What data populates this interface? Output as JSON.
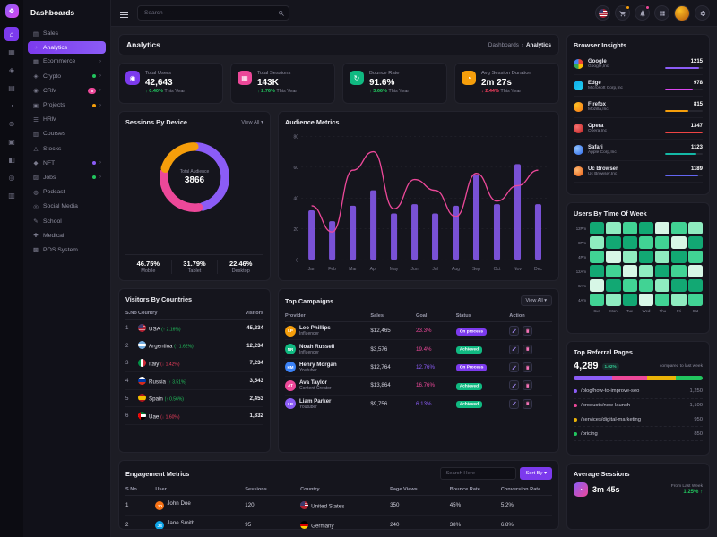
{
  "brand": {
    "name": "Dashboards"
  },
  "icons": {
    "caret": "▾",
    "crumb_sep": "›",
    "logo": "❖",
    "clock": "◔"
  },
  "rail": {
    "items": [
      {
        "glyph": "⌂",
        "name": "home-icon",
        "state": "active"
      },
      {
        "glyph": "▦",
        "name": "apps-icon"
      },
      {
        "glyph": "◈",
        "name": "components-icon"
      },
      {
        "glyph": "▤",
        "name": "pages-icon"
      },
      {
        "glyph": "◔",
        "name": "charts-icon"
      },
      {
        "glyph": "⊕",
        "name": "maps-icon"
      },
      {
        "glyph": "▣",
        "name": "calendar-icon"
      },
      {
        "glyph": "◧",
        "name": "layers-icon"
      },
      {
        "glyph": "◎",
        "name": "analytics-icon"
      },
      {
        "glyph": "▥",
        "name": "wallet-icon"
      }
    ]
  },
  "sidebar": {
    "items": [
      {
        "glyph": "▤",
        "label": "Sales",
        "dn": "sidebar-item-sales"
      },
      {
        "glyph": "◔",
        "label": "Analytics",
        "state": "active",
        "dn": "sidebar-item-analytics"
      },
      {
        "glyph": "▦",
        "label": "Ecommerce",
        "chev": "›",
        "dn": "sidebar-item-ecommerce"
      },
      {
        "glyph": "◈",
        "label": "Crypto",
        "chev": "›",
        "badge": "",
        "badge_bg": "#22c55e",
        "dn": "sidebar-item-crypto"
      },
      {
        "glyph": "◉",
        "label": "CRM",
        "chev": "›",
        "badge": "5",
        "badge_bg": "#ec4899",
        "dn": "sidebar-item-crm"
      },
      {
        "glyph": "▣",
        "label": "Projects",
        "chev": "›",
        "badge": "",
        "badge_bg": "#f59e0b",
        "dn": "sidebar-item-projects"
      },
      {
        "glyph": "☰",
        "label": "HRM",
        "dn": "sidebar-item-hrm"
      },
      {
        "glyph": "▥",
        "label": "Courses",
        "dn": "sidebar-item-courses"
      },
      {
        "glyph": "△",
        "label": "Stocks",
        "dn": "sidebar-item-stocks"
      },
      {
        "glyph": "◆",
        "label": "NFT",
        "chev": "›",
        "badge": "",
        "badge_bg": "#8b5cf6",
        "dn": "sidebar-item-nft"
      },
      {
        "glyph": "▨",
        "label": "Jobs",
        "chev": "›",
        "badge": "",
        "badge_bg": "#22c55e",
        "dn": "sidebar-item-jobs"
      },
      {
        "glyph": "◍",
        "label": "Podcast",
        "dn": "sidebar-item-podcast"
      },
      {
        "glyph": "◎",
        "label": "Social Media",
        "dn": "sidebar-item-social-media"
      },
      {
        "glyph": "✎",
        "label": "School",
        "dn": "sidebar-item-school"
      },
      {
        "glyph": "✚",
        "label": "Medical",
        "dn": "sidebar-item-medical"
      },
      {
        "glyph": "▩",
        "label": "POS System",
        "dn": "sidebar-item-pos-system"
      }
    ]
  },
  "topbar": {
    "search_placeholder": "Search"
  },
  "page": {
    "title": "Analytics",
    "breadcrumb_parent": "Dashboards",
    "breadcrumb_current": "Analytics"
  },
  "stats": [
    {
      "label": "Total Users",
      "value": "42,643",
      "change": "↑ 0.40%",
      "dir": "up",
      "suffix": "This Year",
      "color": "#7c3aed",
      "glyph": "◉"
    },
    {
      "label": "Total Sessions",
      "value": "143K",
      "change": "↑ 2.76%",
      "dir": "up",
      "suffix": "This Year",
      "color": "#ec4899",
      "glyph": "▦"
    },
    {
      "label": "Bounce Rate",
      "value": "91.6%",
      "change": "↑ 3.66%",
      "dir": "up",
      "suffix": "This Year",
      "color": "#10b981",
      "glyph": "↻"
    },
    {
      "label": "Avg Session Duration",
      "value": "2m 27s",
      "change": "↓ 2.44%",
      "dir": "down",
      "suffix": "This Year",
      "color": "#f59e0b",
      "glyph": "◔"
    }
  ],
  "sessions": {
    "title": "Sessions By Device",
    "view_all": "View All",
    "center_label": "Total Audience",
    "center_value": "3866",
    "legend": [
      {
        "pct": "46.75%",
        "label": "Mobile"
      },
      {
        "pct": "31.79%",
        "label": "Tablet"
      },
      {
        "pct": "22.46%",
        "label": "Desktop"
      }
    ]
  },
  "audience": {
    "title": "Audience Metrics"
  },
  "countries": {
    "title": "Visitors By Countries",
    "headers": [
      "S.No",
      "Country",
      "Visitors"
    ],
    "rows": [
      {
        "no": "1",
        "country": "USA",
        "flag": "usa",
        "trend": "(↑ 2.16%)",
        "dir": "up",
        "visitors": "45,234"
      },
      {
        "no": "2",
        "country": "Argentina",
        "flag": "argentina",
        "trend": "(↑ 1.62%)",
        "dir": "up",
        "visitors": "12,234"
      },
      {
        "no": "3",
        "country": "Italy",
        "flag": "italy",
        "trend": "(↓ 1.42%)",
        "dir": "down",
        "visitors": "7,234"
      },
      {
        "no": "4",
        "country": "Russia",
        "flag": "russia",
        "trend": "(↑ 3.51%)",
        "dir": "up",
        "visitors": "3,543"
      },
      {
        "no": "5",
        "country": "Spain",
        "flag": "spain",
        "trend": "(↑ 0.56%)",
        "dir": "up",
        "visitors": "2,453"
      },
      {
        "no": "6",
        "country": "Uae",
        "flag": "uae",
        "trend": "(↓ 1.60%)",
        "dir": "down",
        "visitors": "1,832"
      }
    ]
  },
  "campaigns": {
    "title": "Top Campaigns",
    "view_all": "View All",
    "headers": [
      "Provider",
      "Sales",
      "Goal",
      "Status",
      "Action"
    ],
    "rows": [
      {
        "name": "Leo Phillips",
        "role": "Influencer",
        "initials": "LP",
        "avatar_color": "#f59e0b",
        "sales": "$12,465",
        "goal": "23.3%",
        "goal_color": "#ec4899",
        "status": "On process",
        "status_type": "process"
      },
      {
        "name": "Noah Russell",
        "role": "Influencer",
        "initials": "NR",
        "avatar_color": "#10b981",
        "sales": "$3,576",
        "goal": "19.4%",
        "goal_color": "#ec4899",
        "status": "Achieved",
        "status_type": "achieved"
      },
      {
        "name": "Henry Morgan",
        "role": "Youtuber",
        "initials": "HM",
        "avatar_color": "#3b82f6",
        "sales": "$12,764",
        "goal": "12.76%",
        "goal_color": "#8b5cf6",
        "status": "On Process",
        "status_type": "process"
      },
      {
        "name": "Ava Taylor",
        "role": "Content Creator",
        "initials": "AT",
        "avatar_color": "#ec4899",
        "sales": "$13,864",
        "goal": "16.76%",
        "goal_color": "#ec4899",
        "status": "Achieved",
        "status_type": "achieved"
      },
      {
        "name": "Liam Parker",
        "role": "Youtuber",
        "initials": "LP",
        "avatar_color": "#8b5cf6",
        "sales": "$9,756",
        "goal": "6.13%",
        "goal_color": "#8b5cf6",
        "status": "Achieved",
        "status_type": "achieved"
      }
    ]
  },
  "engagement": {
    "title": "Engagement Metrics",
    "search_placeholder": "Search Here",
    "sort_label": "Sort By",
    "headers": [
      "S.No",
      "User",
      "Sessions",
      "Country",
      "Page Views",
      "Bounce Rate",
      "Conversion Rate"
    ],
    "rows": [
      {
        "no": "1",
        "user": "John Doe",
        "initials": "JD",
        "avatar_color": "#f97316",
        "sessions": "120",
        "country": "United States",
        "flag": "usa",
        "page_views": "350",
        "bounce": "45%",
        "conversion": "5.2%"
      },
      {
        "no": "2",
        "user": "Jane Smith",
        "initials": "JS",
        "avatar_color": "#0ea5e9",
        "sessions": "95",
        "country": "Germany",
        "flag": "germany",
        "page_views": "240",
        "bounce": "38%",
        "conversion": "6.8%"
      }
    ]
  },
  "browsers": {
    "title": "Browser Insights",
    "rows": [
      {
        "name": "Google",
        "company": "Google,Inc",
        "value": "1215",
        "color": "#8b5cf6",
        "icon": "google"
      },
      {
        "name": "Edge",
        "company": "Microsoft Corp,Inc",
        "value": "978",
        "color": "#d946ef",
        "icon": "edge"
      },
      {
        "name": "Firefox",
        "company": "Mozilla,Inc",
        "value": "815",
        "color": "#f59e0b",
        "icon": "firefox"
      },
      {
        "name": "Opera",
        "company": "Opera,Inc",
        "value": "1347",
        "color": "#ef4444",
        "icon": "opera"
      },
      {
        "name": "Safari",
        "company": "Apple Corp,Inc",
        "value": "1123",
        "color": "#14b8a6",
        "icon": "safari"
      },
      {
        "name": "Uc Browser",
        "company": "Uc Browser,Inc",
        "value": "1189",
        "color": "#6366f1",
        "icon": "uc"
      }
    ]
  },
  "heat": {
    "title": "Users By Time Of Week"
  },
  "referrals": {
    "title": "Top Referral Pages",
    "total": "4,289",
    "badge": "1.02%",
    "note": "compared to last week",
    "rows": [
      {
        "path": "/blog/how-to-improve-seo",
        "value": "1,250",
        "color": "#8b5cf6"
      },
      {
        "path": "/products/new-launch",
        "value": "1,100",
        "color": "#ec4899"
      },
      {
        "path": "/services/digital-marketing",
        "value": "950",
        "color": "#eab308"
      },
      {
        "path": "/pricing",
        "value": "850",
        "color": "#22c55e"
      }
    ]
  },
  "average_sessions": {
    "title": "Average Sessions",
    "value": "3m 45s",
    "note": "From Last Week",
    "change": "1.25% ↑"
  },
  "chart_data": [
    {
      "id": "sessions_by_device",
      "type": "pie",
      "title": "Sessions By Device",
      "center_label": "Total Audience",
      "center_value": 3866,
      "slices": [
        {
          "label": "Mobile",
          "pct": 46.75,
          "color": "#8b5cf6"
        },
        {
          "label": "Tablet",
          "pct": 31.79,
          "color": "#ec4899"
        },
        {
          "label": "Desktop",
          "pct": 22.46,
          "color": "#f59e0b"
        }
      ],
      "legend_position": "bottom"
    },
    {
      "id": "audience_metrics",
      "type": "bar",
      "title": "Audience Metrics",
      "categories": [
        "Jan",
        "Feb",
        "Mar",
        "Apr",
        "May",
        "Jun",
        "Jul",
        "Aug",
        "Sep",
        "Oct",
        "Nov",
        "Dec"
      ],
      "series": [
        {
          "name": "Sessions",
          "type": "bar",
          "color": "#8b5cf6",
          "values": [
            32,
            25,
            35,
            45,
            30,
            36,
            30,
            35,
            55,
            36,
            62,
            36
          ]
        },
        {
          "name": "Visitors",
          "type": "line",
          "color": "#ec4899",
          "values": [
            35,
            18,
            58,
            70,
            33,
            52,
            45,
            28,
            56,
            38,
            48,
            58
          ]
        }
      ],
      "ylim": [
        0,
        80
      ],
      "yticks": [
        0,
        20,
        40,
        60,
        80
      ],
      "grid": true
    },
    {
      "id": "users_by_time_of_week",
      "type": "heatmap",
      "rows": [
        "12Pm",
        "8Pm",
        "4Pm",
        "12Am",
        "8Am",
        "4Am"
      ],
      "cols": [
        "Sun",
        "Mon",
        "Tue",
        "Wed",
        "Thu",
        "Fri",
        "Sat"
      ],
      "levels": [
        [
          3,
          1,
          2,
          3,
          0,
          2,
          1
        ],
        [
          1,
          3,
          3,
          2,
          2,
          0,
          3
        ],
        [
          2,
          0,
          1,
          3,
          1,
          3,
          2
        ],
        [
          3,
          2,
          0,
          1,
          3,
          2,
          0
        ],
        [
          0,
          3,
          2,
          2,
          1,
          3,
          3
        ],
        [
          2,
          1,
          3,
          0,
          2,
          1,
          2
        ]
      ],
      "palette": [
        "#d7f7e6",
        "#8fecc0",
        "#41d394",
        "#12a873"
      ]
    }
  ]
}
